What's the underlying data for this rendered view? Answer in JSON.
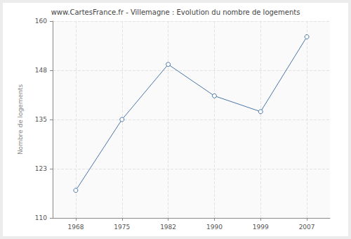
{
  "chart_data": {
    "type": "line",
    "title": "www.CartesFrance.fr - Villemagne : Evolution du nombre de logements",
    "y_label": "Nombre de logements",
    "categories": [
      "1968",
      "1975",
      "1982",
      "1990",
      "1999",
      "2007"
    ],
    "values": [
      117,
      135,
      149,
      141,
      137,
      156
    ],
    "color": "#4a76a8",
    "marker": "circle",
    "ylim": [
      110,
      160
    ],
    "yticks": [
      110,
      {
        "value": 122.5,
        "label": "123"
      },
      135,
      {
        "value": 147.5,
        "label": "148"
      },
      160
    ],
    "grid": true
  }
}
